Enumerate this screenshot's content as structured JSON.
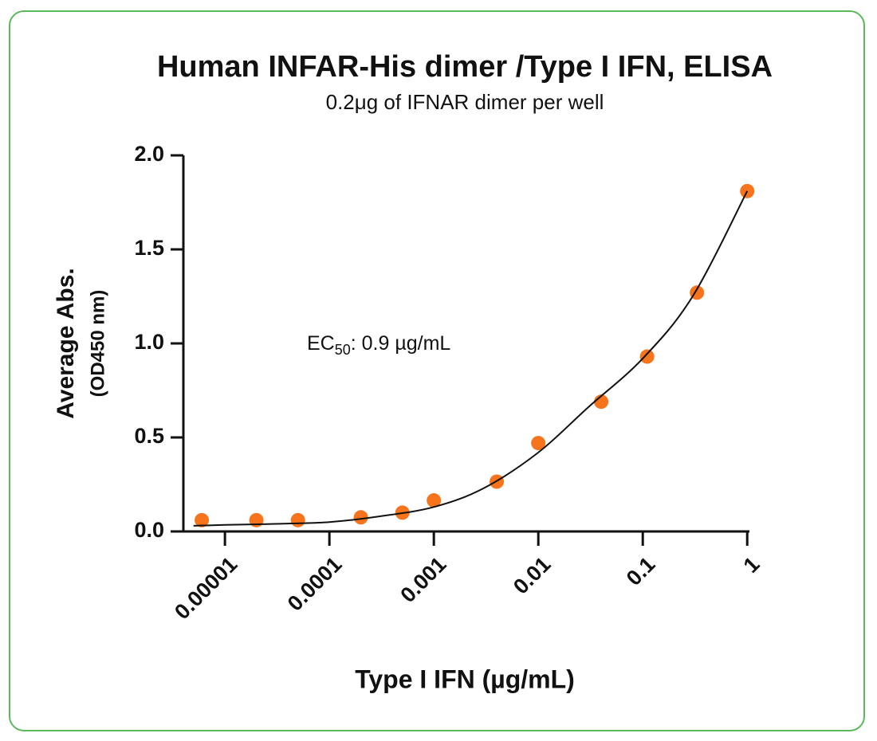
{
  "chart_data": {
    "type": "scatter",
    "title": "Human INFAR-His dimer /Type I IFN, ELISA",
    "subtitle": "0.2μg of IFNAR dimer per well",
    "annotation": {
      "base": "EC",
      "sub": "50",
      "rest": ": 0.9 µg/mL"
    },
    "xlabel": "Type I IFN (µg/mL)",
    "ylabel": [
      "Average Abs.",
      "(OD450 nm)"
    ],
    "xscale": "log",
    "xlim": [
      4e-06,
      1.05
    ],
    "xticks": [
      {
        "value": 1e-05,
        "label": "0.00001"
      },
      0.0001,
      0.001,
      0.01,
      0.1,
      1
    ],
    "ylim": [
      0,
      2
    ],
    "yticks": [
      {
        "value": 0,
        "label": "0.0"
      },
      {
        "value": 0.5,
        "label": "0.5"
      },
      {
        "value": 1,
        "label": "1.0"
      },
      {
        "value": 1.5,
        "label": "1.5"
      },
      {
        "value": 2,
        "label": "2.0"
      }
    ],
    "grid": false,
    "series": [
      {
        "mode": "markers",
        "color": "#f7731c",
        "x": [
          6e-06,
          2e-05,
          5e-05,
          0.0002,
          0.0005,
          0.001,
          0.004,
          0.01,
          0.04,
          0.11,
          0.33,
          1
        ],
        "values": [
          0.06,
          0.06,
          0.06,
          0.075,
          0.1,
          0.165,
          0.265,
          0.47,
          0.69,
          0.93,
          1.27,
          1.81
        ]
      },
      {
        "mode": "line",
        "color": "#111111",
        "x": [
          5e-06,
          1e-05,
          3e-05,
          0.0001,
          0.0003,
          0.001,
          0.003,
          0.01,
          0.03,
          0.1,
          0.3,
          1
        ],
        "values": [
          0.03,
          0.035,
          0.04,
          0.05,
          0.08,
          0.13,
          0.23,
          0.42,
          0.66,
          0.92,
          1.25,
          1.81
        ]
      }
    ]
  }
}
